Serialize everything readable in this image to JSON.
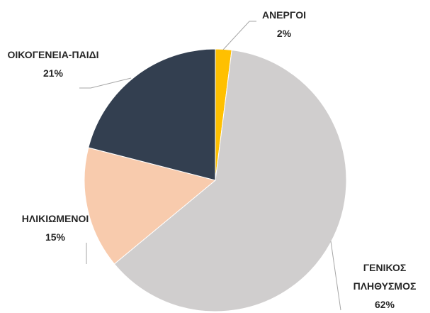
{
  "chart_data": {
    "type": "pie",
    "categories": [
      "ΑΝΕΡΓΟΙ",
      "ΓΕΝΙΚΟΣ ΠΛΗΘΥΣΜΟΣ",
      "ΗΛΙΚΙΩΜΕΝΟΙ",
      "ΟΙΚΟΓΕΝΕΙΑ-ΠΑΙΔΙ"
    ],
    "values": [
      2,
      62,
      15,
      21
    ],
    "value_labels": [
      "2%",
      "62%",
      "15%",
      "21%"
    ],
    "colors": [
      "#ffc000",
      "#d0cece",
      "#f8cbad",
      "#333f50"
    ]
  }
}
